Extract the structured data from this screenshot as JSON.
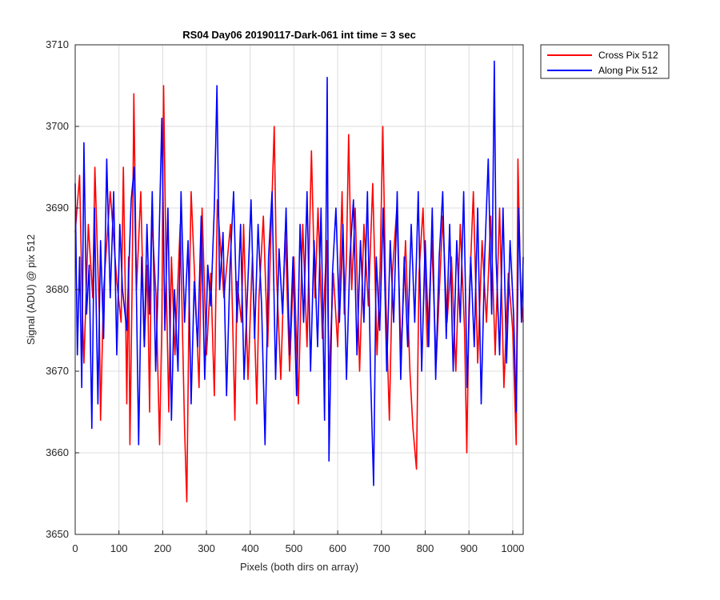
{
  "chart_data": {
    "type": "line",
    "title": "RS04 Day06 20190117-Dark-061 int time = 3 sec",
    "xlabel": "Pixels (both dirs on array)",
    "ylabel": "Signal (ADU) @ pix 512",
    "xlim": [
      0,
      1024
    ],
    "ylim": [
      3650,
      3710
    ],
    "xticks": [
      0,
      100,
      200,
      300,
      400,
      500,
      600,
      700,
      800,
      900,
      1000
    ],
    "yticks": [
      3650,
      3660,
      3670,
      3680,
      3690,
      3700,
      3710
    ],
    "grid": true,
    "legend_position": "outside top-right",
    "series": [
      {
        "name": "Cross Pix 512",
        "color": "#ff0000",
        "points": [
          [
            0,
            3687
          ],
          [
            10,
            3694
          ],
          [
            16,
            3678
          ],
          [
            20,
            3671
          ],
          [
            30,
            3688
          ],
          [
            40,
            3679
          ],
          [
            45,
            3695
          ],
          [
            55,
            3677
          ],
          [
            58,
            3664
          ],
          [
            65,
            3680
          ],
          [
            80,
            3692
          ],
          [
            95,
            3681
          ],
          [
            105,
            3676
          ],
          [
            110,
            3695
          ],
          [
            115,
            3678
          ],
          [
            118,
            3666
          ],
          [
            122,
            3684
          ],
          [
            125,
            3661
          ],
          [
            130,
            3680
          ],
          [
            134,
            3704
          ],
          [
            140,
            3680
          ],
          [
            150,
            3692
          ],
          [
            158,
            3673
          ],
          [
            165,
            3683
          ],
          [
            170,
            3665
          ],
          [
            175,
            3689
          ],
          [
            185,
            3679
          ],
          [
            193,
            3661
          ],
          [
            198,
            3676
          ],
          [
            202,
            3705
          ],
          [
            208,
            3681
          ],
          [
            214,
            3665
          ],
          [
            220,
            3684
          ],
          [
            228,
            3672
          ],
          [
            240,
            3688
          ],
          [
            250,
            3663
          ],
          [
            255,
            3654
          ],
          [
            260,
            3677
          ],
          [
            265,
            3692
          ],
          [
            275,
            3679
          ],
          [
            283,
            3668
          ],
          [
            290,
            3690
          ],
          [
            300,
            3672
          ],
          [
            310,
            3682
          ],
          [
            318,
            3667
          ],
          [
            325,
            3691
          ],
          [
            340,
            3679
          ],
          [
            355,
            3688
          ],
          [
            365,
            3664
          ],
          [
            370,
            3681
          ],
          [
            380,
            3676
          ],
          [
            385,
            3688
          ],
          [
            395,
            3669
          ],
          [
            405,
            3684
          ],
          [
            415,
            3666
          ],
          [
            420,
            3679
          ],
          [
            430,
            3689
          ],
          [
            440,
            3673
          ],
          [
            448,
            3688
          ],
          [
            455,
            3700
          ],
          [
            460,
            3682
          ],
          [
            470,
            3669
          ],
          [
            480,
            3687
          ],
          [
            490,
            3670
          ],
          [
            500,
            3684
          ],
          [
            510,
            3666
          ],
          [
            520,
            3688
          ],
          [
            530,
            3673
          ],
          [
            540,
            3697
          ],
          [
            548,
            3679
          ],
          [
            555,
            3690
          ],
          [
            565,
            3674
          ],
          [
            575,
            3686
          ],
          [
            580,
            3669
          ],
          [
            590,
            3682
          ],
          [
            600,
            3673
          ],
          [
            610,
            3692
          ],
          [
            615,
            3677
          ],
          [
            620,
            3684
          ],
          [
            625,
            3699
          ],
          [
            632,
            3680
          ],
          [
            640,
            3690
          ],
          [
            650,
            3670
          ],
          [
            660,
            3688
          ],
          [
            670,
            3678
          ],
          [
            680,
            3693
          ],
          [
            690,
            3672
          ],
          [
            697,
            3683
          ],
          [
            703,
            3700
          ],
          [
            710,
            3679
          ],
          [
            718,
            3664
          ],
          [
            725,
            3682
          ],
          [
            735,
            3690
          ],
          [
            745,
            3672
          ],
          [
            755,
            3686
          ],
          [
            765,
            3670
          ],
          [
            772,
            3663
          ],
          [
            780,
            3658
          ],
          [
            786,
            3682
          ],
          [
            795,
            3690
          ],
          [
            805,
            3673
          ],
          [
            815,
            3686
          ],
          [
            825,
            3671
          ],
          [
            840,
            3689
          ],
          [
            850,
            3676
          ],
          [
            860,
            3684
          ],
          [
            870,
            3670
          ],
          [
            880,
            3688
          ],
          [
            890,
            3675
          ],
          [
            895,
            3660
          ],
          [
            900,
            3678
          ],
          [
            910,
            3692
          ],
          [
            920,
            3671
          ],
          [
            930,
            3686
          ],
          [
            940,
            3676
          ],
          [
            950,
            3689
          ],
          [
            960,
            3672
          ],
          [
            970,
            3690
          ],
          [
            980,
            3668
          ],
          [
            990,
            3682
          ],
          [
            1000,
            3675
          ],
          [
            1008,
            3661
          ],
          [
            1012,
            3696
          ],
          [
            1018,
            3680
          ],
          [
            1024,
            3676
          ]
        ]
      },
      {
        "name": "Along Pix 512",
        "color": "#0000ff",
        "points": [
          [
            0,
            3693
          ],
          [
            5,
            3672
          ],
          [
            10,
            3684
          ],
          [
            15,
            3668
          ],
          [
            20,
            3698
          ],
          [
            26,
            3677
          ],
          [
            32,
            3683
          ],
          [
            38,
            3663
          ],
          [
            44,
            3690
          ],
          [
            52,
            3666
          ],
          [
            58,
            3686
          ],
          [
            65,
            3674
          ],
          [
            72,
            3696
          ],
          [
            80,
            3679
          ],
          [
            88,
            3692
          ],
          [
            95,
            3672
          ],
          [
            102,
            3688
          ],
          [
            108,
            3680
          ],
          [
            118,
            3675
          ],
          [
            128,
            3691
          ],
          [
            135,
            3695
          ],
          [
            140,
            3679
          ],
          [
            145,
            3661
          ],
          [
            152,
            3684
          ],
          [
            158,
            3673
          ],
          [
            164,
            3688
          ],
          [
            170,
            3677
          ],
          [
            176,
            3692
          ],
          [
            184,
            3670
          ],
          [
            190,
            3682
          ],
          [
            198,
            3701
          ],
          [
            205,
            3675
          ],
          [
            212,
            3690
          ],
          [
            220,
            3664
          ],
          [
            227,
            3680
          ],
          [
            235,
            3670
          ],
          [
            242,
            3692
          ],
          [
            250,
            3676
          ],
          [
            258,
            3686
          ],
          [
            265,
            3666
          ],
          [
            272,
            3681
          ],
          [
            280,
            3673
          ],
          [
            288,
            3689
          ],
          [
            296,
            3669
          ],
          [
            303,
            3683
          ],
          [
            310,
            3678
          ],
          [
            318,
            3690
          ],
          [
            324,
            3705
          ],
          [
            330,
            3680
          ],
          [
            338,
            3687
          ],
          [
            346,
            3667
          ],
          [
            354,
            3683
          ],
          [
            362,
            3692
          ],
          [
            370,
            3676
          ],
          [
            378,
            3688
          ],
          [
            386,
            3669
          ],
          [
            394,
            3680
          ],
          [
            402,
            3691
          ],
          [
            410,
            3674
          ],
          [
            418,
            3688
          ],
          [
            426,
            3678
          ],
          [
            434,
            3661
          ],
          [
            442,
            3684
          ],
          [
            450,
            3692
          ],
          [
            458,
            3669
          ],
          [
            466,
            3685
          ],
          [
            474,
            3677
          ],
          [
            482,
            3690
          ],
          [
            490,
            3672
          ],
          [
            498,
            3684
          ],
          [
            506,
            3667
          ],
          [
            514,
            3688
          ],
          [
            522,
            3676
          ],
          [
            530,
            3692
          ],
          [
            538,
            3670
          ],
          [
            546,
            3686
          ],
          [
            554,
            3673
          ],
          [
            562,
            3690
          ],
          [
            570,
            3664
          ],
          [
            576,
            3706
          ],
          [
            580,
            3659
          ],
          [
            588,
            3682
          ],
          [
            596,
            3690
          ],
          [
            604,
            3676
          ],
          [
            612,
            3688
          ],
          [
            620,
            3669
          ],
          [
            628,
            3684
          ],
          [
            636,
            3691
          ],
          [
            644,
            3672
          ],
          [
            652,
            3686
          ],
          [
            660,
            3676
          ],
          [
            668,
            3692
          ],
          [
            675,
            3670
          ],
          [
            682,
            3656
          ],
          [
            688,
            3684
          ],
          [
            696,
            3675
          ],
          [
            704,
            3690
          ],
          [
            712,
            3670
          ],
          [
            720,
            3686
          ],
          [
            728,
            3676
          ],
          [
            736,
            3692
          ],
          [
            744,
            3669
          ],
          [
            752,
            3684
          ],
          [
            760,
            3673
          ],
          [
            768,
            3688
          ],
          [
            776,
            3676
          ],
          [
            784,
            3692
          ],
          [
            792,
            3670
          ],
          [
            800,
            3686
          ],
          [
            808,
            3673
          ],
          [
            816,
            3690
          ],
          [
            824,
            3669
          ],
          [
            832,
            3684
          ],
          [
            840,
            3692
          ],
          [
            848,
            3674
          ],
          [
            856,
            3688
          ],
          [
            864,
            3670
          ],
          [
            872,
            3686
          ],
          [
            880,
            3676
          ],
          [
            888,
            3692
          ],
          [
            896,
            3668
          ],
          [
            904,
            3684
          ],
          [
            912,
            3673
          ],
          [
            920,
            3690
          ],
          [
            928,
            3666
          ],
          [
            936,
            3684
          ],
          [
            944,
            3696
          ],
          [
            952,
            3677
          ],
          [
            958,
            3708
          ],
          [
            962,
            3684
          ],
          [
            970,
            3672
          ],
          [
            978,
            3690
          ],
          [
            986,
            3671
          ],
          [
            994,
            3686
          ],
          [
            1002,
            3677
          ],
          [
            1008,
            3665
          ],
          [
            1014,
            3690
          ],
          [
            1020,
            3676
          ],
          [
            1024,
            3684
          ]
        ]
      }
    ]
  }
}
